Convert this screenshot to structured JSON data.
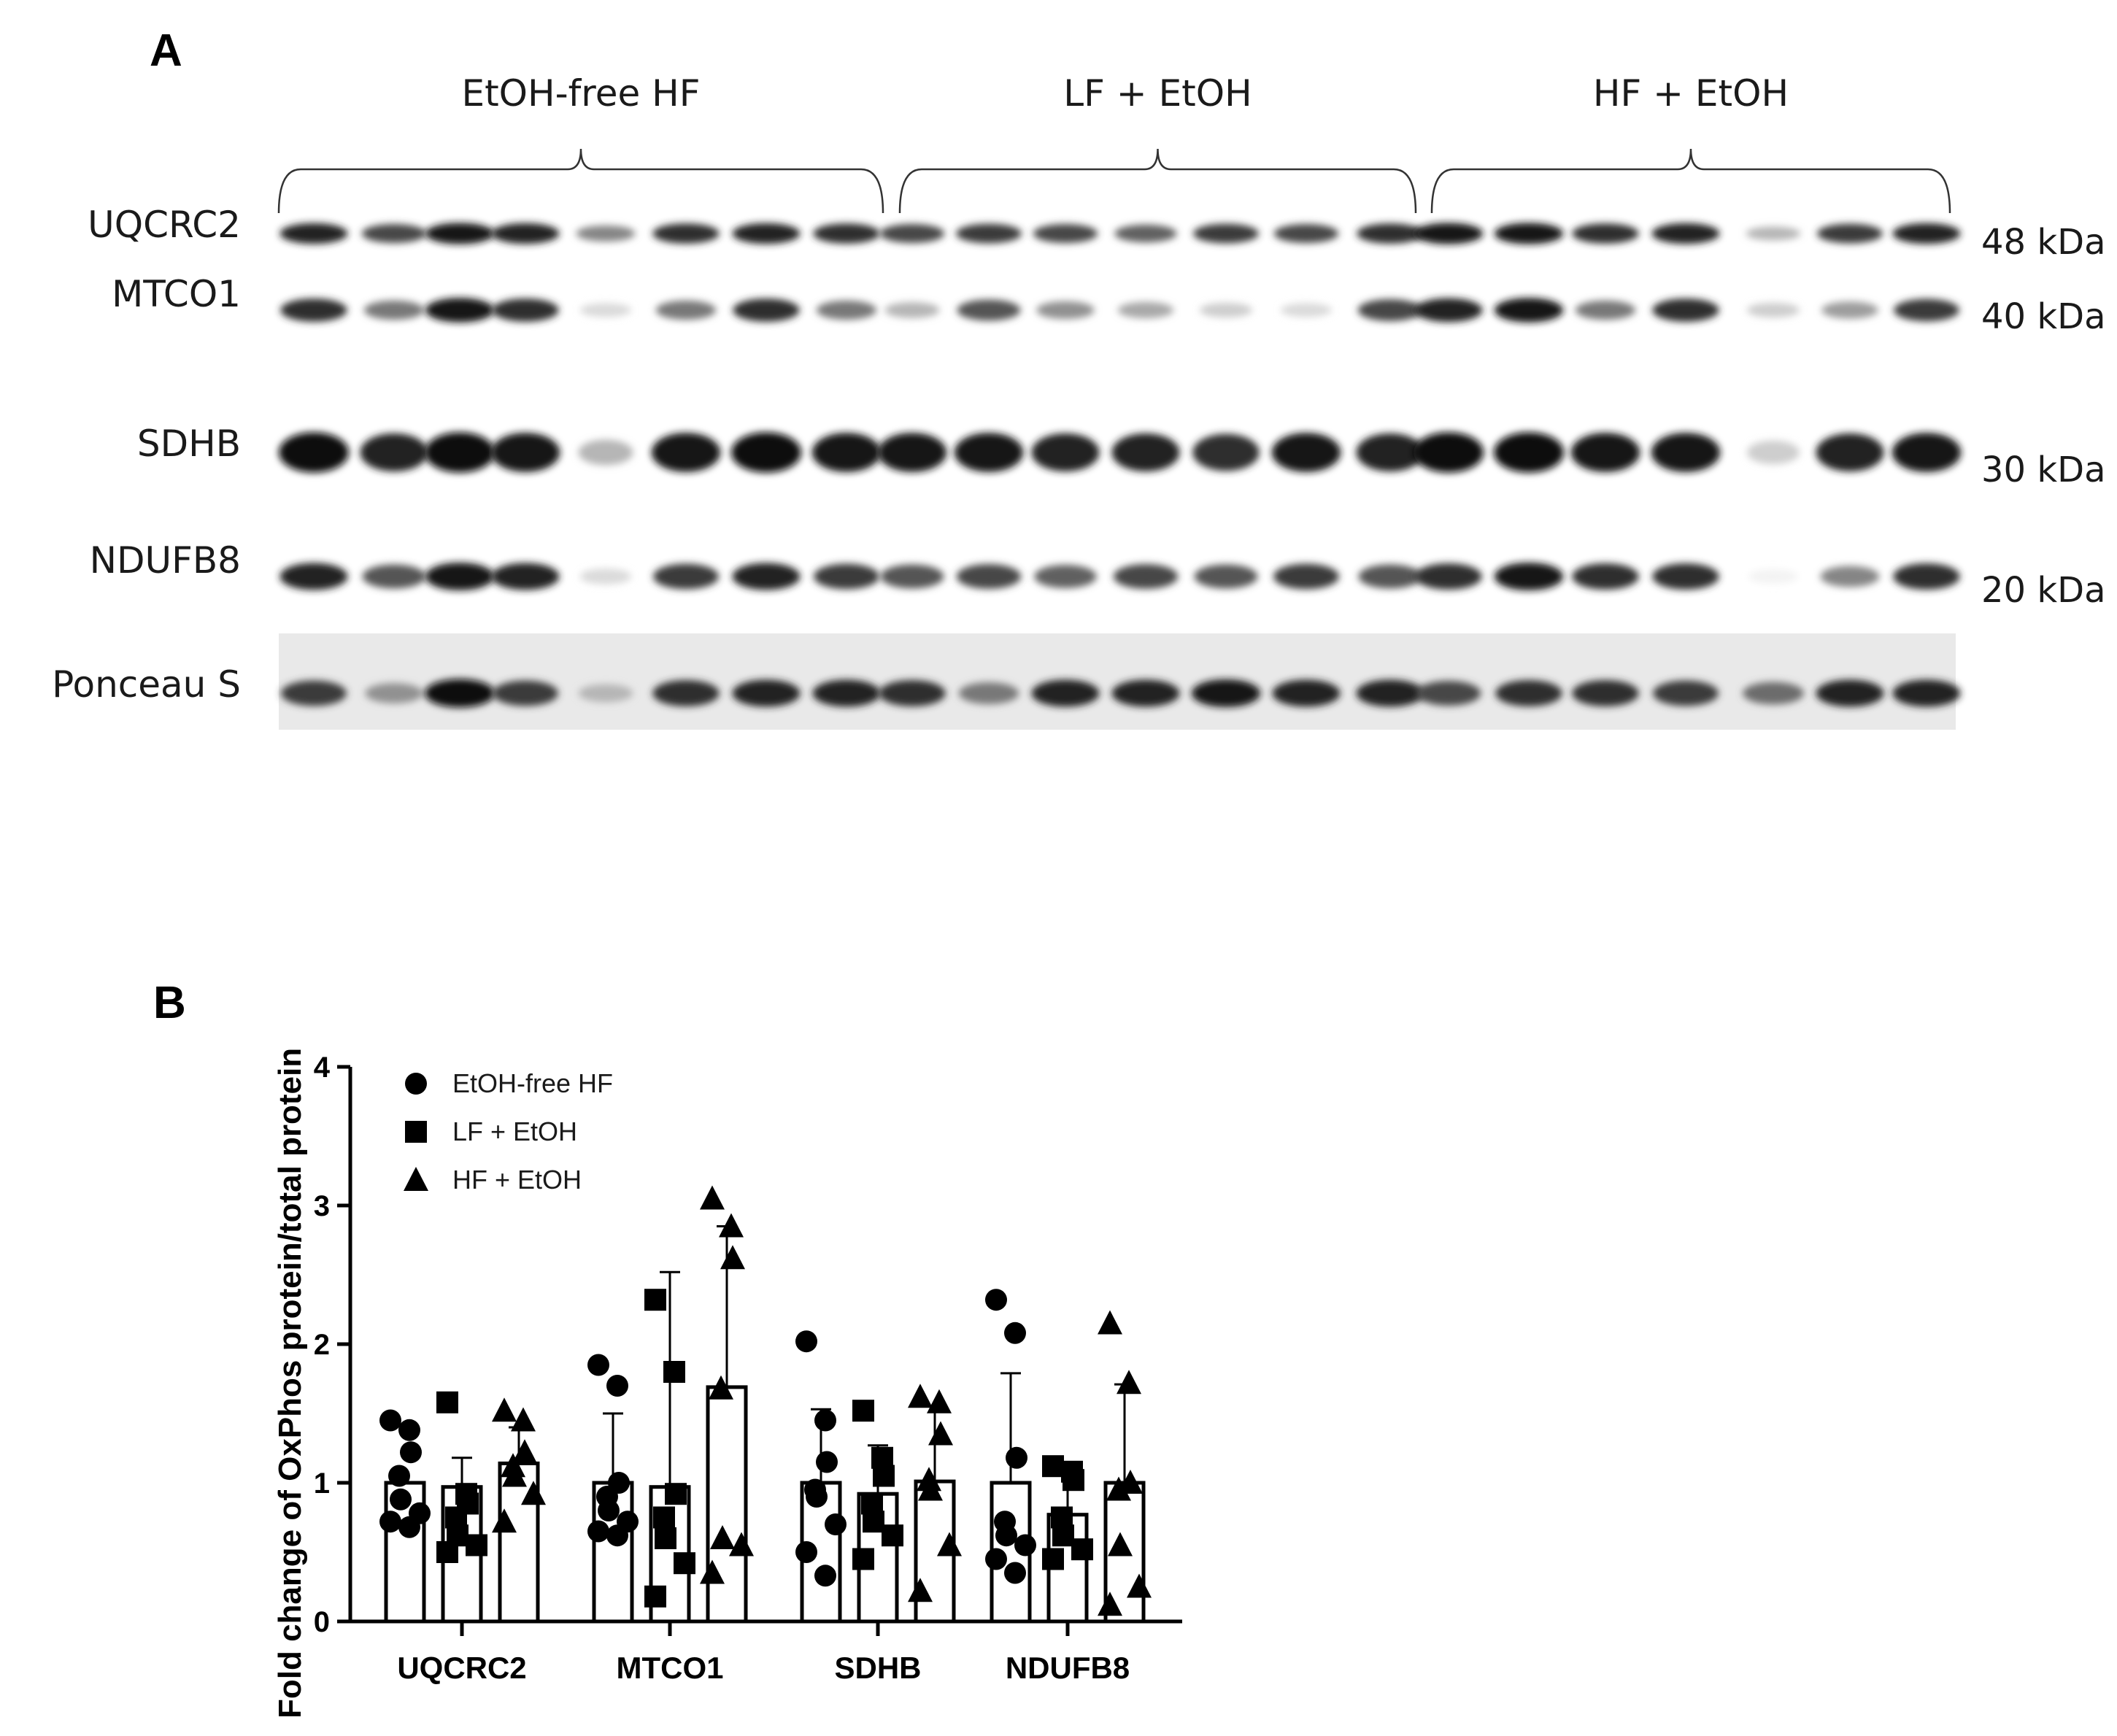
{
  "panel_a": {
    "letter": "A",
    "groups": [
      {
        "name": "EtOH-free HF",
        "lanes": 8
      },
      {
        "name": "LF + EtOH",
        "lanes": 7
      },
      {
        "name": "HF + EtOH",
        "lanes": 7
      }
    ],
    "blots": [
      {
        "label": "UQCRC2",
        "kda": "48 kDa",
        "intensity": [
          0.9,
          0.75,
          0.95,
          0.9,
          0.5,
          0.85,
          0.9,
          0.85,
          0.75,
          0.8,
          0.75,
          0.65,
          0.8,
          0.75,
          0.85,
          0.95,
          0.95,
          0.85,
          0.9,
          0.3,
          0.8,
          0.9
        ]
      },
      {
        "label": "MTCO1",
        "kda": "40 kDa",
        "intensity": [
          0.85,
          0.55,
          0.95,
          0.85,
          0.15,
          0.55,
          0.85,
          0.55,
          0.3,
          0.7,
          0.45,
          0.35,
          0.2,
          0.15,
          0.75,
          0.9,
          0.95,
          0.55,
          0.85,
          0.2,
          0.4,
          0.8
        ]
      },
      {
        "label": "SDHB",
        "kda": "30 kDa",
        "intensity": [
          1,
          0.9,
          1,
          0.95,
          0.3,
          0.95,
          1,
          0.95,
          0.95,
          0.95,
          0.9,
          0.9,
          0.85,
          0.95,
          0.9,
          1,
          1,
          0.95,
          0.95,
          0.2,
          0.9,
          0.95
        ]
      },
      {
        "label": "NDUFB8",
        "kda": "20 kDa",
        "intensity": [
          0.9,
          0.7,
          0.95,
          0.9,
          0.15,
          0.8,
          0.9,
          0.8,
          0.7,
          0.75,
          0.65,
          0.75,
          0.7,
          0.8,
          0.7,
          0.85,
          0.95,
          0.85,
          0.85,
          0.05,
          0.5,
          0.85
        ]
      },
      {
        "label": "Ponceau S",
        "kda": "",
        "intensity": [
          0.8,
          0.45,
          1,
          0.8,
          0.3,
          0.85,
          0.9,
          0.9,
          0.85,
          0.55,
          0.9,
          0.9,
          0.95,
          0.9,
          0.9,
          0.75,
          0.85,
          0.85,
          0.8,
          0.6,
          0.9,
          0.9
        ]
      }
    ]
  },
  "chart_data": {
    "type": "bar",
    "panel_letter": "B",
    "categories": [
      "UQCRC2",
      "MTCO1",
      "SDHB",
      "NDUFB8"
    ],
    "ylabel": "Fold change of OxPhos protein/total protein",
    "xlabel": "",
    "ylim": [
      0,
      4
    ],
    "yticks": [
      0,
      1,
      2,
      3,
      4
    ],
    "legend_position": "top-left",
    "series": [
      {
        "name": "EtOH-free HF",
        "marker": "circle",
        "values": [
          1.0,
          1.0,
          1.0,
          1.0
        ],
        "error_upper": [
          1.0,
          1.5,
          1.53,
          1.79
        ],
        "error_lower": [
          0.72,
          0.55,
          0.6,
          0.25
        ],
        "points": [
          [
            1.45,
            1.38,
            1.22,
            1.05,
            0.88,
            0.78,
            0.72,
            0.68
          ],
          [
            1.85,
            1.7,
            1.0,
            0.9,
            0.8,
            0.72,
            0.65,
            0.62
          ],
          [
            2.02,
            1.45,
            1.15,
            0.95,
            0.9,
            0.7,
            0.5,
            0.33
          ],
          [
            2.32,
            2.08,
            1.18,
            0.72,
            0.62,
            0.55,
            0.45,
            0.35
          ]
        ]
      },
      {
        "name": "LF + EtOH",
        "marker": "square",
        "values": [
          0.97,
          0.97,
          0.92,
          0.77
        ],
        "error_upper": [
          1.18,
          2.52,
          1.27,
          1.12
        ],
        "error_lower": [
          0.5,
          0.2,
          0.55,
          0.42
        ],
        "points": [
          [
            1.58,
            0.92,
            0.85,
            0.75,
            0.62,
            0.55,
            0.5
          ],
          [
            2.32,
            1.8,
            0.92,
            0.75,
            0.6,
            0.42,
            0.18
          ],
          [
            1.52,
            1.18,
            1.05,
            0.85,
            0.72,
            0.62,
            0.45
          ],
          [
            1.12,
            1.08,
            1.02,
            0.75,
            0.62,
            0.52,
            0.45
          ]
        ]
      },
      {
        "name": "HF + EtOH",
        "marker": "triangle",
        "values": [
          1.14,
          1.69,
          1.01,
          1.0
        ],
        "error_upper": [
          1.4,
          2.85,
          1.55,
          1.71
        ],
        "error_lower": [
          0.88,
          0.55,
          0.45,
          0.28
        ],
        "points": [
          [
            1.52,
            1.45,
            1.22,
            1.12,
            1.05,
            0.92,
            0.72
          ],
          [
            3.05,
            2.85,
            2.62,
            1.68,
            0.6,
            0.55,
            0.35
          ],
          [
            1.62,
            1.58,
            1.35,
            1.02,
            0.95,
            0.55,
            0.22
          ],
          [
            2.15,
            1.72,
            1.0,
            0.95,
            0.55,
            0.25,
            0.12
          ]
        ]
      }
    ]
  }
}
